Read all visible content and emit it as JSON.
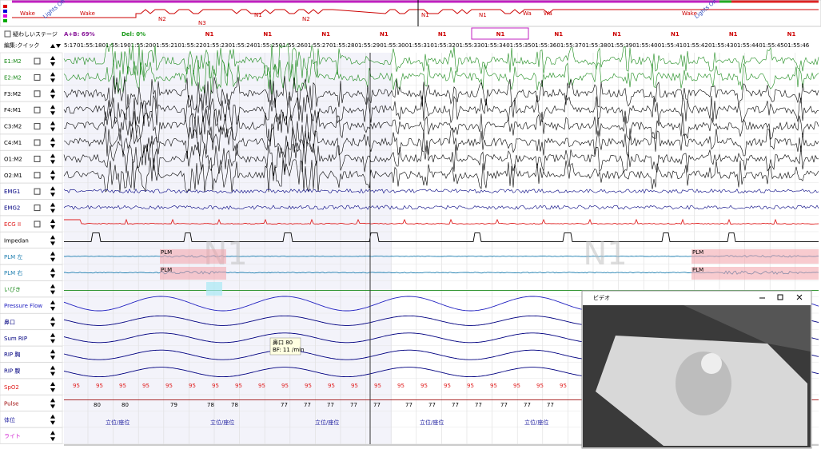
{
  "hypnogram": {
    "labels": [
      "Wake",
      "Lights Off",
      "Wake",
      "N2",
      "N3",
      "N1",
      "N2",
      "N1",
      "N1",
      "Wa",
      "Wa",
      "Wake",
      "Lights On"
    ]
  },
  "toolbar": {
    "suspect_checkbox": "疑わしいステージ",
    "agreement": "A+B: 69%",
    "deletion": "Del: 0%",
    "edit_mode": "編集:クイック"
  },
  "epoch_stages": [
    "N1",
    "N1",
    "N1",
    "N1",
    "N1",
    "N1",
    "N1",
    "N1",
    "N1",
    "N1",
    "N1"
  ],
  "time_labels": [
    "5:17",
    "01:55:18",
    "01:55:19",
    "01:55:20",
    "01:55:21",
    "01:55:22",
    "01:55:23",
    "01:55:24",
    "01:55:25",
    "01:55:26",
    "01:55:27",
    "01:55:28",
    "01:55:29",
    "01:55:30",
    "01:55:31",
    "01:55:32",
    "01:55:33",
    "01:55:34",
    "01:55:35",
    "01:55:36",
    "01:55:37",
    "01:55:38",
    "01:55:39",
    "01:55:40",
    "01:55:41",
    "01:55:42",
    "01:55:43",
    "01:55:44",
    "01:55:45",
    "01:55:46"
  ],
  "channels": [
    {
      "name": "E1:M2",
      "color": "#1a8a1a"
    },
    {
      "name": "E2:M2",
      "color": "#1a8a1a"
    },
    {
      "name": "F3:M2",
      "color": "#000000"
    },
    {
      "name": "F4:M1",
      "color": "#000000"
    },
    {
      "name": "C3:M2",
      "color": "#000000"
    },
    {
      "name": "C4:M1",
      "color": "#000000"
    },
    {
      "name": "O1:M2",
      "color": "#000000"
    },
    {
      "name": "O2:M1",
      "color": "#000000"
    },
    {
      "name": "EMG1",
      "color": "#000080"
    },
    {
      "name": "EMG2",
      "color": "#000080"
    },
    {
      "name": "ECG II",
      "color": "#e02020"
    },
    {
      "name": "Impedan",
      "color": "#000000"
    },
    {
      "name": "PLM 左",
      "color": "#1f7fb0"
    },
    {
      "name": "PLM 右",
      "color": "#1f7fb0"
    },
    {
      "name": "いびき",
      "color": "#1a8a1a"
    },
    {
      "name": "Pressure Flow",
      "color": "#2020c0"
    },
    {
      "name": "鼻口",
      "color": "#000080"
    },
    {
      "name": "Sum RIP",
      "color": "#000080"
    },
    {
      "name": "RIP 胸",
      "color": "#000080"
    },
    {
      "name": "RIP 腹",
      "color": "#000080"
    },
    {
      "name": "SpO2",
      "color": "#e02020"
    },
    {
      "name": "Pulse",
      "color": "#a01010"
    },
    {
      "name": "体位",
      "color": "#2020a0"
    },
    {
      "name": "ライト",
      "color": "#d020d0"
    }
  ],
  "annotations": {
    "plm": [
      "PLM",
      "PLM",
      "PLM",
      "PLM"
    ],
    "stage_watermarks": [
      "N1",
      "N1"
    ],
    "tooltip": [
      "鼻口 80",
      "BF: 11 /min"
    ]
  },
  "spo2_values": [
    "95",
    "95",
    "95",
    "95",
    "95",
    "95",
    "95",
    "95",
    "95",
    "95",
    "95",
    "95",
    "95",
    "95",
    "95",
    "95",
    "95",
    "95",
    "95",
    "95",
    "95",
    "95"
  ],
  "pulse_values": [
    "80",
    "80",
    "79",
    "78",
    "78",
    "77",
    "77",
    "77",
    "77",
    "77",
    "77",
    "77",
    "77",
    "77",
    "77",
    "77",
    "77"
  ],
  "position_labels": [
    "立位/座位",
    "立位/座位",
    "立位/座位",
    "立位/座位",
    "立位/座位"
  ],
  "video": {
    "title": "ビデオ"
  }
}
